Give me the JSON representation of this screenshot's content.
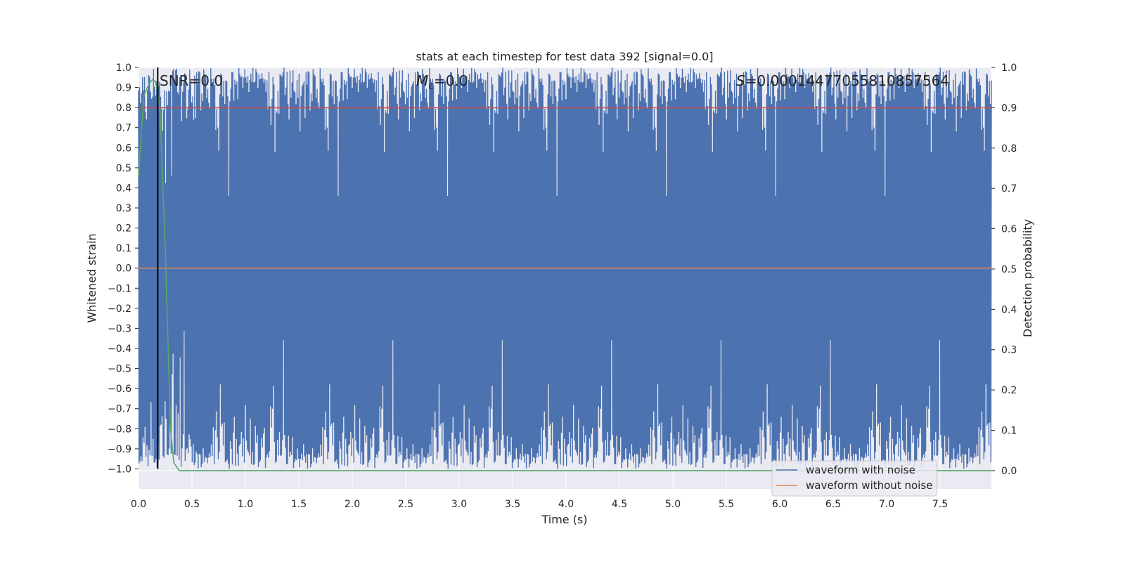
{
  "chart_data": {
    "type": "line",
    "title": "stats at each timestep for test data 392 [signal=0.0]",
    "xlabel": "Time (s)",
    "ylabel": "Whitened strain",
    "y2label": "Detection probability",
    "xlim": [
      0.0,
      7.98
    ],
    "ylim": [
      -1.1,
      1.0
    ],
    "y2lim": [
      -0.0455,
      1.0
    ],
    "xticks": [
      "0.0",
      "0.5",
      "1.0",
      "1.5",
      "2.0",
      "2.5",
      "3.0",
      "3.5",
      "4.0",
      "4.5",
      "5.0",
      "5.5",
      "6.0",
      "6.5",
      "7.0",
      "7.5"
    ],
    "yticks": [
      "1.0",
      "0.9",
      "0.8",
      "0.7",
      "0.6",
      "0.5",
      "0.4",
      "0.3",
      "0.2",
      "0.1",
      "0.0",
      "−0.1",
      "−0.2",
      "−0.3",
      "−0.4",
      "−0.5",
      "−0.6",
      "−0.7",
      "−0.8",
      "−0.9",
      "−1.0"
    ],
    "yticks_values": [
      1.0,
      0.9,
      0.8,
      0.7,
      0.6,
      0.5,
      0.4,
      0.3,
      0.2,
      0.1,
      0.0,
      -0.1,
      -0.2,
      -0.3,
      -0.4,
      -0.5,
      -0.6,
      -0.7,
      -0.8,
      -0.9,
      -1.0
    ],
    "y2ticks": [
      "1.0",
      "0.9",
      "0.8",
      "0.7",
      "0.6",
      "0.5",
      "0.4",
      "0.3",
      "0.2",
      "0.1",
      "0.0"
    ],
    "y2ticks_values": [
      1.0,
      0.9,
      0.8,
      0.7,
      0.6,
      0.5,
      0.4,
      0.3,
      0.2,
      0.1,
      0.0
    ],
    "annotations": {
      "snr": "SNR=0.0",
      "mc_symbol": "M",
      "mc_sub": "c",
      "mc_value": "=0.0",
      "s_symbol": "S",
      "s_value": "=0.00014477055810857564"
    },
    "series": [
      {
        "name": "waveform with noise",
        "color": "#4c72b0",
        "note": "dense whitened noise trace oscillating between -1.0 and 1.0 over the full time range"
      },
      {
        "name": "waveform without noise",
        "color": "#dd8452",
        "x": [
          0.0,
          7.98
        ],
        "y": [
          0.0,
          0.0
        ]
      },
      {
        "name": "detection probability",
        "axis": "right",
        "color": "#55a868",
        "x": [
          0.0,
          0.05,
          0.1,
          0.13,
          0.16,
          0.2,
          0.25,
          0.3,
          0.33,
          0.38,
          0.5,
          1.0,
          7.98
        ],
        "y": [
          0.73,
          0.93,
          0.96,
          0.97,
          0.965,
          0.9,
          0.55,
          0.1,
          0.02,
          0.0,
          0.0,
          0.0,
          0.0
        ]
      }
    ],
    "threshold_line": {
      "axis": "right",
      "value": 0.9,
      "color": "#c44e52"
    },
    "vertical_marker": {
      "x": 0.18,
      "color": "#000000"
    },
    "grid": true,
    "legend_position": "lower-right"
  }
}
